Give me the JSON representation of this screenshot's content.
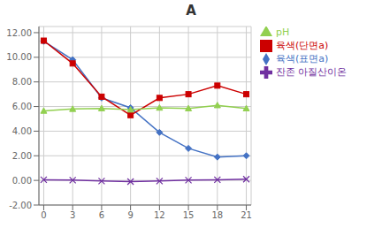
{
  "chart_data": {
    "type": "line",
    "title": "A",
    "x": [
      0,
      3,
      6,
      9,
      12,
      15,
      18,
      21
    ],
    "series": [
      {
        "name": "육색(표면a)",
        "color": "#4472C4",
        "marker": "diamond",
        "values": [
          11.3,
          9.8,
          6.7,
          5.9,
          3.9,
          2.6,
          1.9,
          2.0
        ]
      },
      {
        "name": "육색(단면a)",
        "color": "#CC0000",
        "marker": "square",
        "values": [
          11.35,
          9.5,
          6.8,
          5.3,
          6.7,
          7.0,
          7.7,
          7.0
        ]
      },
      {
        "name": "pH",
        "color": "#92D050",
        "marker": "triangle",
        "values": [
          5.65,
          5.8,
          5.85,
          5.75,
          5.9,
          5.85,
          6.1,
          5.85
        ]
      },
      {
        "name": "잔존 아질산이온",
        "color": "#7030A0",
        "marker": "x",
        "values": [
          0.05,
          0.02,
          -0.05,
          -0.1,
          -0.05,
          0.02,
          0.05,
          0.1
        ]
      }
    ],
    "xlim": [
      -0.5,
      21.5
    ],
    "ylim": [
      -2.0,
      12.5
    ],
    "xticks": [
      0,
      3,
      6,
      9,
      12,
      15,
      18,
      21
    ],
    "yticks": [
      {
        "value": -2.0,
        "label": "-2.00"
      },
      {
        "value": 0.0,
        "label": "0.00"
      },
      {
        "value": 2.0,
        "label": "2.00"
      },
      {
        "value": 4.0,
        "label": "4.00"
      },
      {
        "value": 6.0,
        "label": "6.00"
      },
      {
        "value": 8.0,
        "label": "8.00"
      },
      {
        "value": 10.0,
        "label": "10.00"
      },
      {
        "value": 12.0,
        "label": "12.00"
      }
    ],
    "grid": true,
    "legend": "right"
  }
}
